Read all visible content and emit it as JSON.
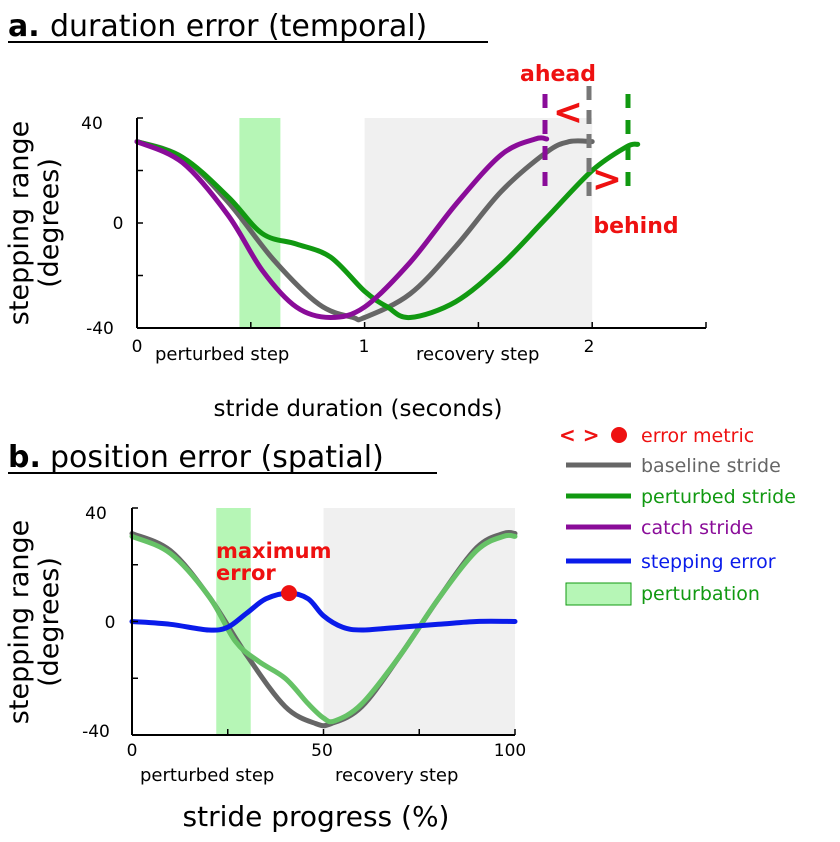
{
  "colors": {
    "baseline": "#666666",
    "perturbed": "#119911",
    "perturbed_light": "#66c266",
    "catch": "#8a0c99",
    "error": "#0a1bea",
    "metric": "#ee1111",
    "perturbation_fill": "#b6f6b6",
    "recovery_fill": "#f0f0f0"
  },
  "panel_a": {
    "title_letter": "a.",
    "title_text": "duration error (temporal)",
    "ylabel_line1": "stepping range",
    "ylabel_line2": "(degrees)",
    "xlabel": "stride duration (seconds)",
    "region_perturbed": "perturbed step",
    "region_recovery": "recovery step",
    "ahead_label": "ahead",
    "behind_label": "behind",
    "ahead_symbol": "<",
    "behind_symbol": ">"
  },
  "panel_b": {
    "title_letter": "b.",
    "title_text": "position error (spatial)",
    "ylabel_line1": "stepping range",
    "ylabel_line2": "(degrees)",
    "xlabel": "stride progress (%)",
    "region_perturbed": "perturbed step",
    "region_recovery": "recovery step",
    "max_error_line1": "maximum",
    "max_error_line2": "error"
  },
  "legend": {
    "items": [
      {
        "key": "metric",
        "label": "error metric",
        "symbol": "< >"
      },
      {
        "key": "baseline",
        "label": "baseline stride"
      },
      {
        "key": "perturbed",
        "label": "perturbed stride"
      },
      {
        "key": "catch",
        "label": "catch stride"
      },
      {
        "key": "error",
        "label": "stepping error"
      },
      {
        "key": "perturbation",
        "label": "perturbation"
      }
    ]
  },
  "chart_data": [
    {
      "type": "line",
      "title": "duration error (temporal)",
      "xlabel": "stride duration (seconds)",
      "ylabel": "stepping range (degrees)",
      "xlim": [
        0,
        2.5
      ],
      "ylim": [
        -40,
        40
      ],
      "x_ticks": [
        "0",
        "1",
        "2"
      ],
      "y_ticks": [
        "40",
        "0",
        "-40"
      ],
      "perturbation_window": [
        0.45,
        0.63
      ],
      "recovery_window": [
        1.0,
        2.0
      ],
      "series": [
        {
          "name": "baseline stride",
          "color_key": "baseline",
          "x": [
            0,
            0.2,
            0.4,
            0.6,
            0.8,
            0.95,
            1.0,
            1.2,
            1.4,
            1.6,
            1.8,
            1.9,
            2.0
          ],
          "y": [
            31,
            25,
            8,
            -14,
            -31,
            -36,
            -36,
            -27,
            -9,
            12,
            27,
            31,
            31
          ]
        },
        {
          "name": "perturbed stride",
          "color_key": "perturbed",
          "x": [
            0,
            0.2,
            0.4,
            0.55,
            0.7,
            0.85,
            1.0,
            1.1,
            1.2,
            1.4,
            1.6,
            1.8,
            2.0,
            2.15,
            2.2
          ],
          "y": [
            31,
            25,
            10,
            -4,
            -8,
            -13,
            -26,
            -32,
            -36,
            -30,
            -16,
            2,
            20,
            29,
            30
          ]
        },
        {
          "name": "catch stride",
          "color_key": "catch",
          "x": [
            0,
            0.2,
            0.4,
            0.55,
            0.7,
            0.85,
            1.0,
            1.2,
            1.4,
            1.6,
            1.75,
            1.8
          ],
          "y": [
            31,
            23,
            3,
            -18,
            -32,
            -36,
            -32,
            -15,
            7,
            26,
            32,
            32
          ]
        }
      ]
    },
    {
      "type": "line",
      "title": "position error (spatial)",
      "xlabel": "stride progress (%)",
      "ylabel": "stepping range (degrees)",
      "xlim": [
        0,
        100
      ],
      "ylim": [
        -40,
        40
      ],
      "x_ticks": [
        "0",
        "50",
        "100"
      ],
      "y_ticks": [
        "40",
        "0",
        "-40"
      ],
      "perturbation_window": [
        22,
        31
      ],
      "recovery_window": [
        50,
        100
      ],
      "series": [
        {
          "name": "baseline stride",
          "color_key": "baseline",
          "x": [
            0,
            10,
            20,
            30,
            40,
            48,
            52,
            60,
            70,
            80,
            90,
            97,
            100
          ],
          "y": [
            31,
            25,
            9,
            -12,
            -30,
            -36,
            -36,
            -30,
            -12,
            8,
            26,
            31,
            31
          ]
        },
        {
          "name": "perturbed stride",
          "color_key": "perturbed_light",
          "x": [
            0,
            10,
            20,
            27,
            33,
            40,
            46,
            50,
            53,
            60,
            70,
            80,
            90,
            97,
            100
          ],
          "y": [
            30,
            24,
            9,
            -7,
            -14,
            -20,
            -29,
            -34,
            -35,
            -29,
            -12,
            8,
            25,
            30,
            30
          ]
        },
        {
          "name": "stepping error",
          "color_key": "error",
          "x": [
            0,
            10,
            20,
            25,
            30,
            35,
            41,
            46,
            50,
            55,
            60,
            70,
            80,
            90,
            100
          ],
          "y": [
            0,
            -1,
            -3,
            -2,
            3,
            8,
            10,
            8,
            2,
            -2,
            -3,
            -2,
            -1,
            0,
            0
          ]
        }
      ],
      "max_error_point": {
        "x": 41,
        "y": 10
      }
    }
  ]
}
